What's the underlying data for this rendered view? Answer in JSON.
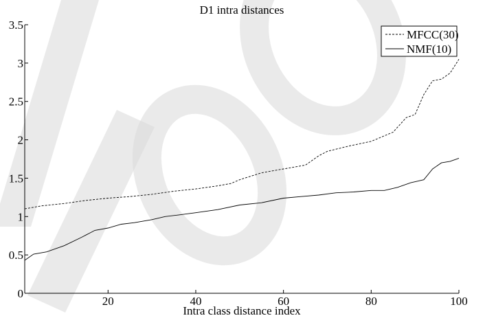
{
  "chart_data": {
    "type": "line",
    "title": "D1 intra distances",
    "xlabel": "Intra class distance index",
    "ylabel": "",
    "xlim": [
      1,
      100
    ],
    "ylim": [
      0,
      3.5
    ],
    "xticks": [
      "20",
      "40",
      "60",
      "80",
      "100"
    ],
    "yticks": [
      "0",
      "0.5",
      "1",
      "1.5",
      "2",
      "2.5",
      "3",
      "3.5"
    ],
    "legend_position": "top-right",
    "grid": false,
    "watermark_text": "proof",
    "series": [
      {
        "name": "MFCC(30)",
        "style": "dashed",
        "color": "#000000",
        "x": [
          1,
          5,
          10,
          15,
          20,
          25,
          30,
          35,
          40,
          45,
          48,
          50,
          55,
          60,
          65,
          68,
          70,
          75,
          80,
          85,
          88,
          90,
          92,
          94,
          96,
          98,
          100
        ],
        "y": [
          1.1,
          1.14,
          1.17,
          1.21,
          1.24,
          1.26,
          1.29,
          1.33,
          1.36,
          1.4,
          1.43,
          1.48,
          1.57,
          1.62,
          1.67,
          1.79,
          1.85,
          1.92,
          1.98,
          2.1,
          2.29,
          2.33,
          2.59,
          2.77,
          2.79,
          2.87,
          3.05
        ]
      },
      {
        "name": "NMF(10)",
        "style": "solid",
        "color": "#000000",
        "x": [
          1,
          3,
          6,
          10,
          14,
          17,
          20,
          23,
          26,
          30,
          33,
          36,
          40,
          45,
          50,
          55,
          60,
          64,
          68,
          72,
          76,
          80,
          83,
          86,
          89,
          92,
          94,
          96,
          98,
          100
        ],
        "y": [
          0.43,
          0.51,
          0.54,
          0.62,
          0.73,
          0.82,
          0.85,
          0.9,
          0.92,
          0.96,
          1.0,
          1.02,
          1.05,
          1.09,
          1.15,
          1.18,
          1.24,
          1.26,
          1.28,
          1.31,
          1.32,
          1.34,
          1.34,
          1.38,
          1.44,
          1.48,
          1.62,
          1.7,
          1.72,
          1.76
        ]
      }
    ]
  }
}
